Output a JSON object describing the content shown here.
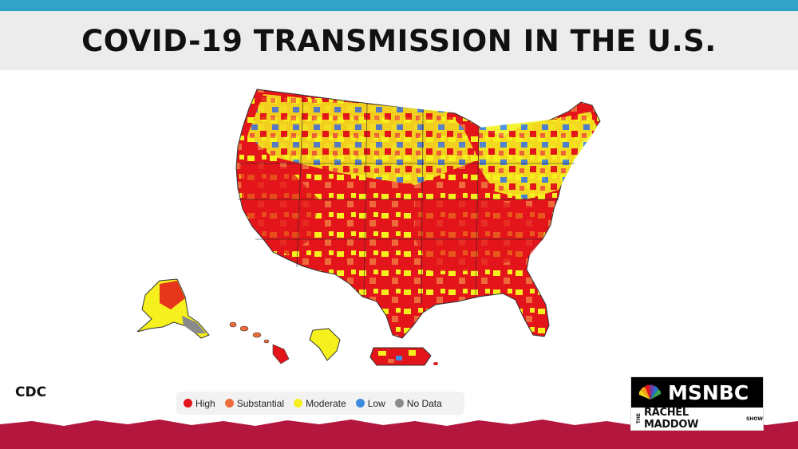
{
  "title": "COVID-19 TRANSMISSION IN THE U.S.",
  "source": "CDC",
  "legend": [
    {
      "label": "High",
      "color": "#e3151b"
    },
    {
      "label": "Substantial",
      "color": "#ef6a3a"
    },
    {
      "label": "Moderate",
      "color": "#f5f01e"
    },
    {
      "label": "Low",
      "color": "#3d8be0"
    },
    {
      "label": "No Data",
      "color": "#8a8a8a"
    }
  ],
  "logo": {
    "network": "MSNBC",
    "show_prefix": "THE",
    "show_name": "RACHEL MADDOW",
    "show_suffix": "SHOW"
  },
  "colors": {
    "top_band": "#31a3c9",
    "bottom_band": "#b3173e",
    "title_bar": "#ececec"
  },
  "map_icons": [
    "usa-map",
    "alaska-map",
    "hawaii-map",
    "guam-map",
    "puerto-rico-map"
  ]
}
